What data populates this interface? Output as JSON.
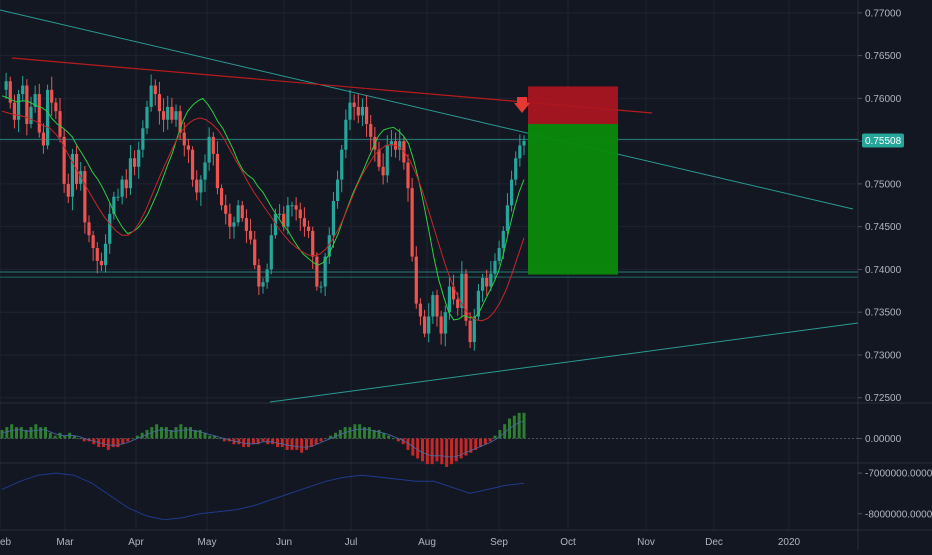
{
  "theme": {
    "background": "#131722",
    "grid": "#1f2330",
    "up": "#26a69a",
    "down": "#ef5350",
    "ma_fast": "#2ecc40",
    "ma_slow": "#c62828",
    "trendline": "#2b9a93",
    "resistance": "#b71c1c",
    "macd_up": "#2e7d32",
    "macd_down": "#c62828",
    "osc_line": "#1e3a8a",
    "sl_zone": "#b0151f",
    "tp_zone": "#0a8a0a",
    "arrow": "#e53935",
    "price_badge": "#26a69a"
  },
  "chart_data": [
    {
      "type": "candlestick",
      "pane": "price",
      "x_tick_labels": [
        "eb",
        "Mar",
        "Apr",
        "May",
        "Jun",
        "Jul",
        "Aug",
        "Sep",
        "Oct",
        "Nov",
        "Dec",
        "2020"
      ],
      "y_tick_labels": [
        "0.77000",
        "0.76500",
        "0.76000",
        "0.75500",
        "0.75000",
        "0.74500",
        "0.74000",
        "0.73500",
        "0.73000",
        "0.72500"
      ],
      "y_ticks": [
        0.77,
        0.765,
        0.76,
        0.755,
        0.75,
        0.745,
        0.74,
        0.735,
        0.73,
        0.725
      ],
      "ylim": [
        0.7245,
        0.7715
      ],
      "current_price": "0.75508",
      "current_price_value": 0.75508,
      "close_path": [
        0.761,
        0.762,
        0.7595,
        0.7575,
        0.7605,
        0.7615,
        0.757,
        0.759,
        0.7605,
        0.756,
        0.7545,
        0.761,
        0.7595,
        0.7585,
        0.7555,
        0.75,
        0.7485,
        0.7535,
        0.75,
        0.7515,
        0.7455,
        0.744,
        0.7425,
        0.741,
        0.7405,
        0.743,
        0.7465,
        0.7485,
        0.7485,
        0.7505,
        0.7495,
        0.753,
        0.752,
        0.754,
        0.7565,
        0.759,
        0.7615,
        0.7605,
        0.7585,
        0.7575,
        0.759,
        0.7575,
        0.7585,
        0.756,
        0.7545,
        0.754,
        0.7505,
        0.749,
        0.7505,
        0.7525,
        0.7555,
        0.7535,
        0.7495,
        0.7475,
        0.7465,
        0.745,
        0.7455,
        0.7475,
        0.746,
        0.7445,
        0.7435,
        0.7405,
        0.738,
        0.7385,
        0.74,
        0.744,
        0.7465,
        0.7465,
        0.745,
        0.7475,
        0.7475,
        0.747,
        0.746,
        0.745,
        0.7445,
        0.7415,
        0.738,
        0.738,
        0.7415,
        0.744,
        0.748,
        0.7505,
        0.754,
        0.7575,
        0.7595,
        0.759,
        0.758,
        0.759,
        0.757,
        0.7555,
        0.754,
        0.752,
        0.751,
        0.7545,
        0.755,
        0.754,
        0.755,
        0.7525,
        0.7495,
        0.7415,
        0.736,
        0.7345,
        0.7325,
        0.7345,
        0.737,
        0.7345,
        0.7325,
        0.735,
        0.738,
        0.7365,
        0.7355,
        0.7395,
        0.734,
        0.7315,
        0.7345,
        0.7375,
        0.739,
        0.738,
        0.7395,
        0.741,
        0.7425,
        0.7445,
        0.7475,
        0.7505,
        0.753,
        0.7545,
        0.755
      ],
      "close_path_xlim": [
        0,
        127
      ],
      "ma_fast": [
        0.7603,
        0.7601,
        0.7598,
        0.7596,
        0.7597,
        0.7597,
        0.7594,
        0.7591,
        0.7589,
        0.7585,
        0.7576,
        0.757,
        0.7566,
        0.7561,
        0.7555,
        0.7544,
        0.7535,
        0.7525,
        0.7514,
        0.7506,
        0.7496,
        0.7484,
        0.7471,
        0.7459,
        0.7449,
        0.7442,
        0.7444,
        0.7448,
        0.7455,
        0.7464,
        0.7477,
        0.749,
        0.7506,
        0.7522,
        0.7537,
        0.7556,
        0.7573,
        0.7585,
        0.7592,
        0.7597,
        0.76,
        0.7593,
        0.7584,
        0.7573,
        0.7565,
        0.7553,
        0.7541,
        0.7527,
        0.7516,
        0.751,
        0.7506,
        0.7497,
        0.749,
        0.748,
        0.747,
        0.7461,
        0.7452,
        0.7445,
        0.7435,
        0.7426,
        0.7418,
        0.7413,
        0.7408,
        0.7405,
        0.7408,
        0.7416,
        0.7429,
        0.7442,
        0.7459,
        0.7475,
        0.749,
        0.7503,
        0.7516,
        0.753,
        0.7543,
        0.7556,
        0.7563,
        0.7565,
        0.7566,
        0.7562,
        0.7556,
        0.7547,
        0.7528,
        0.7505,
        0.7477,
        0.7447,
        0.7415,
        0.7388,
        0.7368,
        0.735,
        0.7341,
        0.7342,
        0.7346,
        0.7344,
        0.7343,
        0.7349,
        0.7361,
        0.7373,
        0.7385,
        0.7399,
        0.742,
        0.7446,
        0.747,
        0.749,
        0.7505
      ],
      "ma_fast_xlim": [
        0,
        105
      ],
      "ma_slow": [
        0.7585,
        0.7583,
        0.7581,
        0.758,
        0.7578,
        0.7575,
        0.7572,
        0.7568,
        0.7565,
        0.7558,
        0.7548,
        0.7535,
        0.7522,
        0.751,
        0.7497,
        0.7485,
        0.7473,
        0.7462,
        0.7453,
        0.7445,
        0.744,
        0.744,
        0.7445,
        0.7456,
        0.747,
        0.7487,
        0.7504,
        0.752,
        0.7535,
        0.755,
        0.7562,
        0.757,
        0.7575,
        0.7577,
        0.7575,
        0.757,
        0.7563,
        0.7553,
        0.754,
        0.7527,
        0.7515,
        0.7502,
        0.749,
        0.748,
        0.747,
        0.746,
        0.7449,
        0.744,
        0.7432,
        0.7426,
        0.7421,
        0.7417,
        0.7416,
        0.7418,
        0.7424,
        0.7434,
        0.7446,
        0.7461,
        0.7478,
        0.7495,
        0.751,
        0.7522,
        0.7533,
        0.754,
        0.7545,
        0.7546,
        0.7544,
        0.7538,
        0.7527,
        0.7512,
        0.7493,
        0.7471,
        0.7448,
        0.7425,
        0.7403,
        0.7384,
        0.7368,
        0.7355,
        0.7346,
        0.7341,
        0.734,
        0.7343,
        0.735,
        0.7361,
        0.7376,
        0.7395,
        0.7416,
        0.7437
      ],
      "ma_slow_xlim": [
        0,
        87
      ]
    },
    {
      "type": "bar",
      "pane": "macd",
      "y_tick_labels": [
        "0.00000"
      ],
      "values": [
        3,
        4,
        5,
        4,
        4,
        3,
        4,
        5,
        4,
        4,
        2,
        1,
        2,
        1,
        2,
        1,
        0,
        -1,
        -1,
        -2,
        -3,
        -3,
        -4,
        -3,
        -3,
        -2,
        -1,
        0,
        1,
        2,
        3,
        4,
        5,
        4,
        4,
        3,
        4,
        5,
        4,
        4,
        3,
        3,
        2,
        1,
        1,
        0,
        -1,
        -1,
        -2,
        -2,
        -3,
        -3,
        -2,
        -2,
        -1,
        -2,
        -2,
        -3,
        -3,
        -4,
        -4,
        -4,
        -5,
        -4,
        -3,
        -2,
        -1,
        0,
        1,
        2,
        3,
        4,
        4,
        5,
        5,
        4,
        4,
        3,
        3,
        2,
        1,
        0,
        -1,
        -2,
        -4,
        -6,
        -7,
        -8,
        -9,
        -9,
        -8,
        -9,
        -10,
        -9,
        -8,
        -7,
        -6,
        -5,
        -4,
        -3,
        -2,
        -1,
        1,
        3,
        5,
        7,
        8,
        9,
        9
      ],
      "ylim": [
        -10,
        10
      ]
    },
    {
      "type": "line",
      "pane": "oscillator",
      "y_tick_labels": [
        "-7000000.00000",
        "-8000000.00000"
      ],
      "values": [
        -7400000,
        -7200000,
        -7050000,
        -7000000,
        -7050000,
        -7250000,
        -7550000,
        -7850000,
        -8050000,
        -8150000,
        -8100000,
        -8000000,
        -7950000,
        -7900000,
        -7800000,
        -7650000,
        -7500000,
        -7350000,
        -7200000,
        -7100000,
        -7050000,
        -7100000,
        -7150000,
        -7200000,
        -7200000,
        -7350000,
        -7500000,
        -7400000,
        -7300000,
        -7250000
      ],
      "ylim": [
        -8400000,
        -6800000
      ]
    }
  ],
  "trade_setup": {
    "stop_zone": {
      "top": 0.7614,
      "bottom": 0.757
    },
    "target_zone": {
      "top": 0.757,
      "bottom": 0.7394
    }
  }
}
